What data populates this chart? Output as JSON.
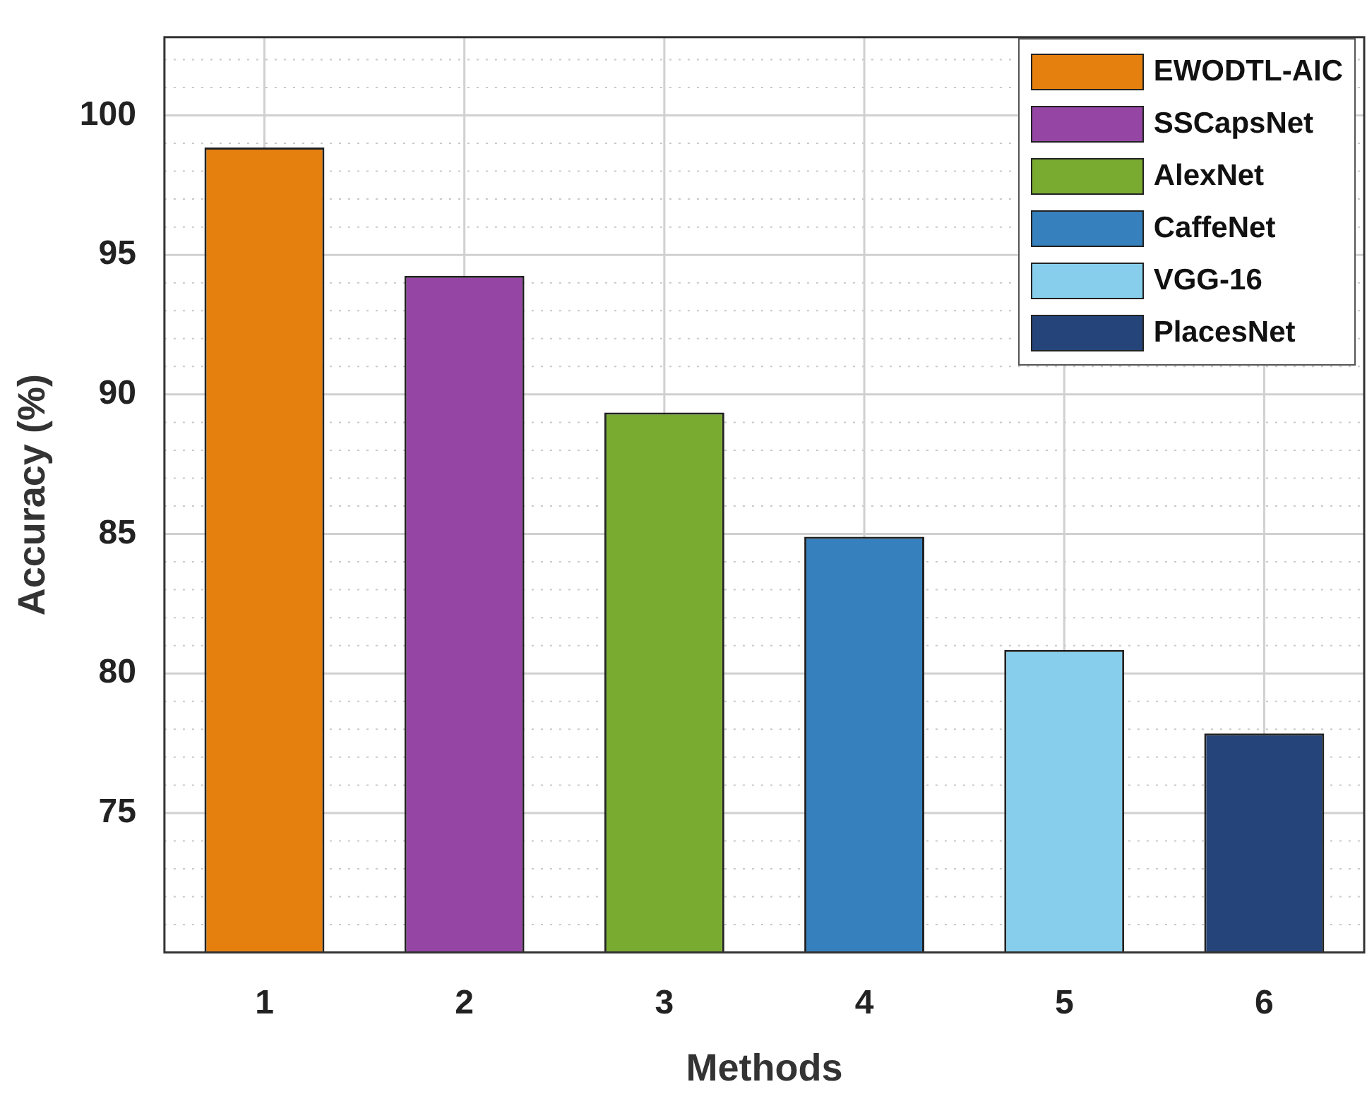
{
  "chart_data": {
    "type": "bar",
    "xlabel": "Methods",
    "ylabel": "Accuracy (%)",
    "categories": [
      "1",
      "2",
      "3",
      "4",
      "5",
      "6"
    ],
    "series": [
      {
        "name": "EWODTL-AIC",
        "color": "#e5800f",
        "values": [
          98.85,
          null,
          null,
          null,
          null,
          null
        ]
      },
      {
        "name": "SSCapsNet",
        "color": "#9546a4",
        "values": [
          null,
          94.25,
          null,
          null,
          null,
          null
        ]
      },
      {
        "name": "AlexNet",
        "color": "#7aab31",
        "values": [
          null,
          null,
          89.35,
          null,
          null,
          null
        ]
      },
      {
        "name": "CaffeNet",
        "color": "#3580bd",
        "values": [
          null,
          null,
          null,
          84.9,
          null,
          null
        ]
      },
      {
        "name": "VGG-16",
        "color": "#87ceec",
        "values": [
          null,
          null,
          null,
          null,
          80.85,
          null
        ]
      },
      {
        "name": "PlacesNet",
        "color": "#25457a",
        "values": [
          null,
          null,
          null,
          null,
          null,
          77.85
        ]
      }
    ],
    "ylim": [
      70,
      102.8
    ],
    "yticks": [
      {
        "value": 71,
        "label": null
      },
      {
        "value": 72,
        "label": null
      },
      {
        "value": 73,
        "label": null
      },
      {
        "value": 74,
        "label": null
      },
      75,
      {
        "value": 76,
        "label": null
      },
      {
        "value": 77,
        "label": null
      },
      {
        "value": 78,
        "label": null
      },
      {
        "value": 79,
        "label": null
      },
      80,
      {
        "value": 81,
        "label": null
      },
      {
        "value": 82,
        "label": null
      },
      {
        "value": 83,
        "label": null
      },
      {
        "value": 84,
        "label": null
      },
      85,
      {
        "value": 86,
        "label": null
      },
      {
        "value": 87,
        "label": null
      },
      {
        "value": 88,
        "label": null
      },
      {
        "value": 89,
        "label": null
      },
      90,
      {
        "value": 91,
        "label": null
      },
      {
        "value": 92,
        "label": null
      },
      {
        "value": 93,
        "label": null
      },
      {
        "value": 94,
        "label": null
      },
      95,
      {
        "value": 96,
        "label": null
      },
      {
        "value": 97,
        "label": null
      },
      {
        "value": 98,
        "label": null
      },
      {
        "value": 99,
        "label": null
      },
      100,
      {
        "value": 101,
        "label": null
      },
      {
        "value": 102,
        "label": null
      }
    ],
    "grid": true,
    "legend": "top right"
  }
}
